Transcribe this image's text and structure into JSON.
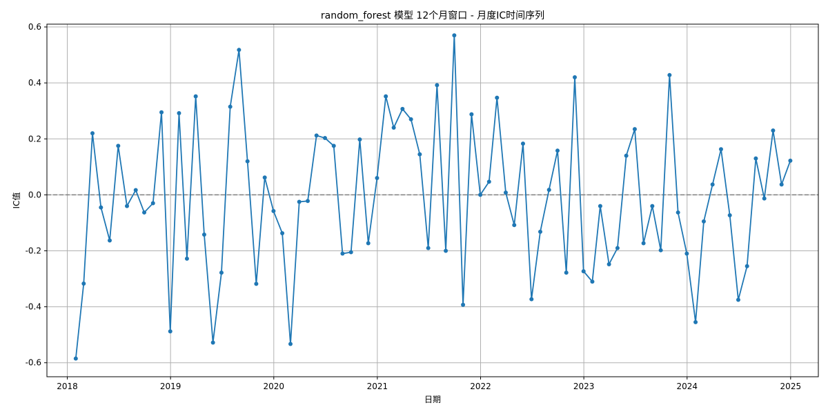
{
  "chart_data": {
    "type": "line",
    "title": "random_forest 模型 12个月窗口 - 月度IC时间序列",
    "xlabel": "日期",
    "ylabel": "IC值",
    "x_ticks": [
      "2018",
      "2019",
      "2020",
      "2021",
      "2022",
      "2023",
      "2024",
      "2025"
    ],
    "y_ticks": [
      "-0.6",
      "-0.4",
      "-0.2",
      "0.0",
      "0.2",
      "0.4",
      "0.6"
    ],
    "xlim": [
      "2017-10-21",
      "2025-04-09"
    ],
    "ylim": [
      -0.65,
      0.61
    ],
    "grid": true,
    "reference_line": 0.0,
    "line_color": "#1f77b4",
    "reference_color": "#808080",
    "x": [
      "2018-01-31",
      "2018-02-28",
      "2018-03-31",
      "2018-04-30",
      "2018-05-31",
      "2018-06-30",
      "2018-07-31",
      "2018-08-31",
      "2018-09-30",
      "2018-10-31",
      "2018-11-30",
      "2018-12-31",
      "2019-01-31",
      "2019-02-28",
      "2019-03-31",
      "2019-04-30",
      "2019-05-31",
      "2019-06-30",
      "2019-07-31",
      "2019-08-31",
      "2019-09-30",
      "2019-10-31",
      "2019-11-30",
      "2019-12-31",
      "2020-01-31",
      "2020-02-29",
      "2020-03-31",
      "2020-04-30",
      "2020-05-31",
      "2020-06-30",
      "2020-07-31",
      "2020-08-31",
      "2020-09-30",
      "2020-10-31",
      "2020-11-30",
      "2020-12-31",
      "2021-01-31",
      "2021-02-28",
      "2021-03-31",
      "2021-04-30",
      "2021-05-31",
      "2021-06-30",
      "2021-07-31",
      "2021-08-31",
      "2021-09-30",
      "2021-10-31",
      "2021-11-30",
      "2021-12-31",
      "2022-01-31",
      "2022-02-28",
      "2022-03-31",
      "2022-04-30",
      "2022-05-31",
      "2022-06-30",
      "2022-07-31",
      "2022-08-31",
      "2022-09-30",
      "2022-10-31",
      "2022-11-30",
      "2022-12-31",
      "2023-01-31",
      "2023-02-28",
      "2023-03-31",
      "2023-04-30",
      "2023-05-31",
      "2023-06-30",
      "2023-07-31",
      "2023-08-31",
      "2023-09-30",
      "2023-10-31",
      "2023-11-30",
      "2023-12-31",
      "2024-01-31",
      "2024-02-29",
      "2024-03-31",
      "2024-04-30",
      "2024-05-31",
      "2024-06-30",
      "2024-07-31",
      "2024-08-31",
      "2024-09-30",
      "2024-10-31",
      "2024-11-30",
      "2024-12-31"
    ],
    "series": [
      {
        "values": [
          -0.585,
          -0.317,
          0.22,
          -0.045,
          -0.163,
          0.175,
          -0.04,
          0.017,
          -0.063,
          -0.03,
          0.295,
          -0.488,
          0.292,
          -0.228,
          0.352,
          -0.142,
          -0.528,
          -0.278,
          0.315,
          0.518,
          0.12,
          -0.318,
          0.062,
          -0.058,
          -0.137,
          -0.533,
          -0.025,
          -0.022,
          0.212,
          0.203,
          0.175,
          -0.21,
          -0.205,
          0.198,
          -0.173,
          0.06,
          0.352,
          0.24,
          0.307,
          0.27,
          0.145,
          -0.19,
          0.392,
          -0.2,
          0.57,
          -0.393,
          0.288,
          0.0,
          0.047,
          0.347,
          0.008,
          -0.108,
          0.183,
          -0.373,
          -0.132,
          0.018,
          0.158,
          -0.278,
          0.42,
          -0.273,
          -0.31,
          -0.04,
          -0.248,
          -0.19,
          0.14,
          0.235,
          -0.173,
          -0.04,
          -0.198,
          0.428,
          -0.063,
          -0.21,
          -0.455,
          -0.095,
          0.037,
          0.163,
          -0.073,
          -0.375,
          -0.255,
          0.13,
          -0.013,
          0.23,
          0.037,
          0.122
        ]
      }
    ]
  }
}
